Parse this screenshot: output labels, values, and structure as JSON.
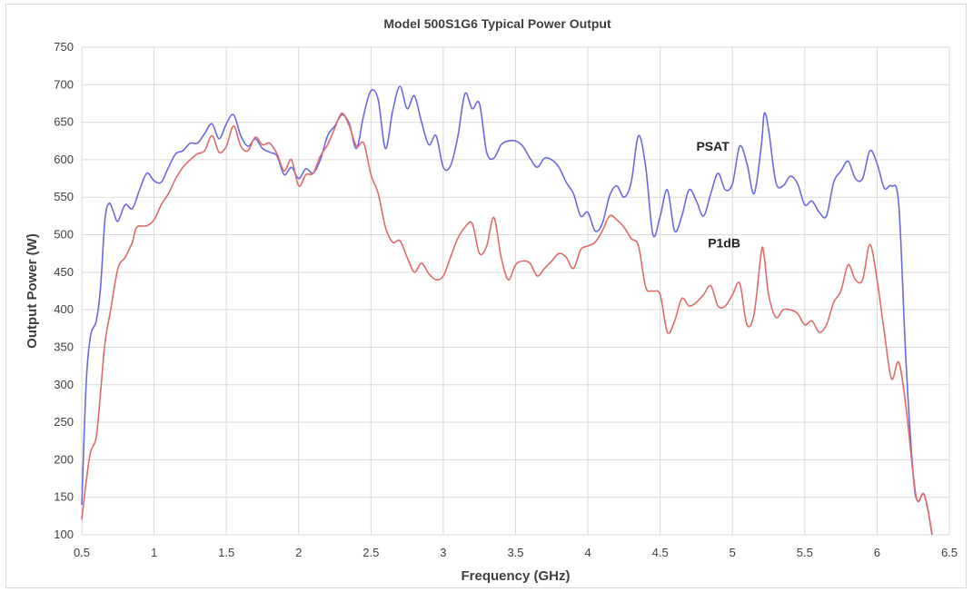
{
  "chart_data": {
    "type": "line",
    "title": "Model 500S1G6 Typical Power Output",
    "xlabel": "Frequency (GHz)",
    "ylabel": "Output Power (W)",
    "xlim": [
      0.5,
      6.5
    ],
    "ylim": [
      100,
      750
    ],
    "xticks": [
      "0.5",
      "1",
      "1.5",
      "2",
      "2.5",
      "3",
      "3.5",
      "4",
      "4.5",
      "5",
      "5.5",
      "6",
      "6.5"
    ],
    "yticks": [
      "100",
      "150",
      "200",
      "250",
      "300",
      "350",
      "400",
      "450",
      "500",
      "550",
      "600",
      "650",
      "700",
      "750"
    ],
    "grid": "vertical and horizontal",
    "legend": "none",
    "series": [
      {
        "name": "PSAT",
        "color": "#6a6ae0",
        "points": [
          [
            0.5,
            140
          ],
          [
            0.53,
            300
          ],
          [
            0.56,
            365
          ],
          [
            0.6,
            385
          ],
          [
            0.63,
            430
          ],
          [
            0.66,
            520
          ],
          [
            0.69,
            542
          ],
          [
            0.72,
            530
          ],
          [
            0.75,
            518
          ],
          [
            0.8,
            540
          ],
          [
            0.85,
            535
          ],
          [
            0.9,
            560
          ],
          [
            0.95,
            582
          ],
          [
            1.0,
            572
          ],
          [
            1.05,
            570
          ],
          [
            1.1,
            590
          ],
          [
            1.15,
            608
          ],
          [
            1.2,
            612
          ],
          [
            1.25,
            622
          ],
          [
            1.3,
            622
          ],
          [
            1.35,
            635
          ],
          [
            1.4,
            648
          ],
          [
            1.45,
            628
          ],
          [
            1.5,
            648
          ],
          [
            1.55,
            660
          ],
          [
            1.6,
            632
          ],
          [
            1.65,
            618
          ],
          [
            1.7,
            628
          ],
          [
            1.75,
            615
          ],
          [
            1.8,
            610
          ],
          [
            1.85,
            605
          ],
          [
            1.9,
            580
          ],
          [
            1.95,
            590
          ],
          [
            2.0,
            575
          ],
          [
            2.05,
            588
          ],
          [
            2.1,
            582
          ],
          [
            2.15,
            600
          ],
          [
            2.2,
            632
          ],
          [
            2.25,
            645
          ],
          [
            2.3,
            660
          ],
          [
            2.35,
            648
          ],
          [
            2.4,
            615
          ],
          [
            2.45,
            660
          ],
          [
            2.5,
            692
          ],
          [
            2.55,
            680
          ],
          [
            2.6,
            615
          ],
          [
            2.65,
            665
          ],
          [
            2.7,
            698
          ],
          [
            2.75,
            668
          ],
          [
            2.8,
            685
          ],
          [
            2.85,
            650
          ],
          [
            2.9,
            620
          ],
          [
            2.95,
            632
          ],
          [
            3.0,
            590
          ],
          [
            3.05,
            592
          ],
          [
            3.1,
            630
          ],
          [
            3.15,
            688
          ],
          [
            3.2,
            668
          ],
          [
            3.25,
            675
          ],
          [
            3.3,
            610
          ],
          [
            3.35,
            602
          ],
          [
            3.4,
            620
          ],
          [
            3.45,
            625
          ],
          [
            3.5,
            625
          ],
          [
            3.55,
            618
          ],
          [
            3.6,
            602
          ],
          [
            3.65,
            590
          ],
          [
            3.7,
            602
          ],
          [
            3.75,
            600
          ],
          [
            3.8,
            590
          ],
          [
            3.85,
            570
          ],
          [
            3.9,
            555
          ],
          [
            3.95,
            525
          ],
          [
            4.0,
            530
          ],
          [
            4.05,
            505
          ],
          [
            4.1,
            515
          ],
          [
            4.15,
            552
          ],
          [
            4.2,
            565
          ],
          [
            4.25,
            550
          ],
          [
            4.3,
            570
          ],
          [
            4.35,
            632
          ],
          [
            4.4,
            590
          ],
          [
            4.45,
            500
          ],
          [
            4.5,
            525
          ],
          [
            4.55,
            560
          ],
          [
            4.6,
            505
          ],
          [
            4.65,
            525
          ],
          [
            4.7,
            560
          ],
          [
            4.75,
            545
          ],
          [
            4.8,
            525
          ],
          [
            4.85,
            555
          ],
          [
            4.9,
            582
          ],
          [
            4.95,
            560
          ],
          [
            5.0,
            568
          ],
          [
            5.05,
            618
          ],
          [
            5.1,
            595
          ],
          [
            5.15,
            555
          ],
          [
            5.2,
            620
          ],
          [
            5.22,
            662
          ],
          [
            5.25,
            640
          ],
          [
            5.3,
            570
          ],
          [
            5.35,
            565
          ],
          [
            5.4,
            578
          ],
          [
            5.45,
            568
          ],
          [
            5.5,
            540
          ],
          [
            5.55,
            545
          ],
          [
            5.6,
            530
          ],
          [
            5.65,
            525
          ],
          [
            5.7,
            570
          ],
          [
            5.75,
            585
          ],
          [
            5.8,
            598
          ],
          [
            5.85,
            575
          ],
          [
            5.9,
            575
          ],
          [
            5.95,
            612
          ],
          [
            6.0,
            595
          ],
          [
            6.05,
            562
          ],
          [
            6.1,
            565
          ],
          [
            6.15,
            540
          ],
          [
            6.2,
            330
          ],
          [
            6.25,
            180
          ],
          [
            6.28,
            145
          ],
          [
            6.32,
            155
          ],
          [
            6.35,
            135
          ],
          [
            6.38,
            100
          ]
        ]
      },
      {
        "name": "P1dB",
        "color": "#e06a6a",
        "points": [
          [
            0.5,
            120
          ],
          [
            0.53,
            170
          ],
          [
            0.56,
            210
          ],
          [
            0.6,
            230
          ],
          [
            0.63,
            290
          ],
          [
            0.66,
            355
          ],
          [
            0.7,
            400
          ],
          [
            0.75,
            455
          ],
          [
            0.8,
            470
          ],
          [
            0.85,
            490
          ],
          [
            0.88,
            510
          ],
          [
            0.95,
            512
          ],
          [
            1.0,
            520
          ],
          [
            1.05,
            540
          ],
          [
            1.1,
            555
          ],
          [
            1.15,
            575
          ],
          [
            1.2,
            590
          ],
          [
            1.25,
            600
          ],
          [
            1.3,
            608
          ],
          [
            1.35,
            612
          ],
          [
            1.4,
            632
          ],
          [
            1.45,
            610
          ],
          [
            1.5,
            618
          ],
          [
            1.55,
            645
          ],
          [
            1.6,
            618
          ],
          [
            1.65,
            612
          ],
          [
            1.7,
            630
          ],
          [
            1.75,
            620
          ],
          [
            1.8,
            622
          ],
          [
            1.85,
            608
          ],
          [
            1.9,
            585
          ],
          [
            1.95,
            600
          ],
          [
            2.0,
            565
          ],
          [
            2.05,
            580
          ],
          [
            2.1,
            582
          ],
          [
            2.15,
            605
          ],
          [
            2.2,
            620
          ],
          [
            2.25,
            642
          ],
          [
            2.3,
            662
          ],
          [
            2.35,
            645
          ],
          [
            2.4,
            618
          ],
          [
            2.45,
            622
          ],
          [
            2.5,
            580
          ],
          [
            2.55,
            555
          ],
          [
            2.6,
            510
          ],
          [
            2.65,
            490
          ],
          [
            2.7,
            492
          ],
          [
            2.75,
            470
          ],
          [
            2.8,
            450
          ],
          [
            2.85,
            462
          ],
          [
            2.9,
            448
          ],
          [
            2.95,
            440
          ],
          [
            3.0,
            445
          ],
          [
            3.05,
            470
          ],
          [
            3.1,
            495
          ],
          [
            3.15,
            510
          ],
          [
            3.2,
            515
          ],
          [
            3.25,
            475
          ],
          [
            3.3,
            485
          ],
          [
            3.35,
            523
          ],
          [
            3.4,
            470
          ],
          [
            3.45,
            440
          ],
          [
            3.5,
            460
          ],
          [
            3.55,
            465
          ],
          [
            3.6,
            462
          ],
          [
            3.65,
            445
          ],
          [
            3.7,
            455
          ],
          [
            3.75,
            465
          ],
          [
            3.8,
            475
          ],
          [
            3.85,
            470
          ],
          [
            3.9,
            455
          ],
          [
            3.95,
            480
          ],
          [
            4.0,
            485
          ],
          [
            4.05,
            490
          ],
          [
            4.1,
            505
          ],
          [
            4.15,
            525
          ],
          [
            4.2,
            520
          ],
          [
            4.25,
            510
          ],
          [
            4.3,
            495
          ],
          [
            4.35,
            485
          ],
          [
            4.4,
            430
          ],
          [
            4.45,
            425
          ],
          [
            4.5,
            420
          ],
          [
            4.55,
            370
          ],
          [
            4.6,
            385
          ],
          [
            4.65,
            415
          ],
          [
            4.7,
            405
          ],
          [
            4.75,
            410
          ],
          [
            4.8,
            420
          ],
          [
            4.85,
            432
          ],
          [
            4.9,
            405
          ],
          [
            4.95,
            405
          ],
          [
            5.0,
            420
          ],
          [
            5.05,
            435
          ],
          [
            5.1,
            380
          ],
          [
            5.15,
            395
          ],
          [
            5.2,
            478
          ],
          [
            5.22,
            470
          ],
          [
            5.25,
            420
          ],
          [
            5.3,
            390
          ],
          [
            5.35,
            400
          ],
          [
            5.4,
            400
          ],
          [
            5.45,
            395
          ],
          [
            5.5,
            380
          ],
          [
            5.55,
            385
          ],
          [
            5.6,
            370
          ],
          [
            5.65,
            380
          ],
          [
            5.7,
            410
          ],
          [
            5.75,
            425
          ],
          [
            5.8,
            460
          ],
          [
            5.85,
            440
          ],
          [
            5.9,
            440
          ],
          [
            5.95,
            487
          ],
          [
            6.0,
            440
          ],
          [
            6.05,
            370
          ],
          [
            6.1,
            308
          ],
          [
            6.15,
            330
          ],
          [
            6.2,
            270
          ],
          [
            6.25,
            180
          ],
          [
            6.28,
            145
          ],
          [
            6.32,
            155
          ],
          [
            6.35,
            135
          ],
          [
            6.38,
            100
          ]
        ]
      }
    ],
    "annotations": [
      {
        "text": "PSAT",
        "x": 4.75,
        "y": 612
      },
      {
        "text": "P1dB",
        "x": 4.83,
        "y": 483
      }
    ]
  }
}
